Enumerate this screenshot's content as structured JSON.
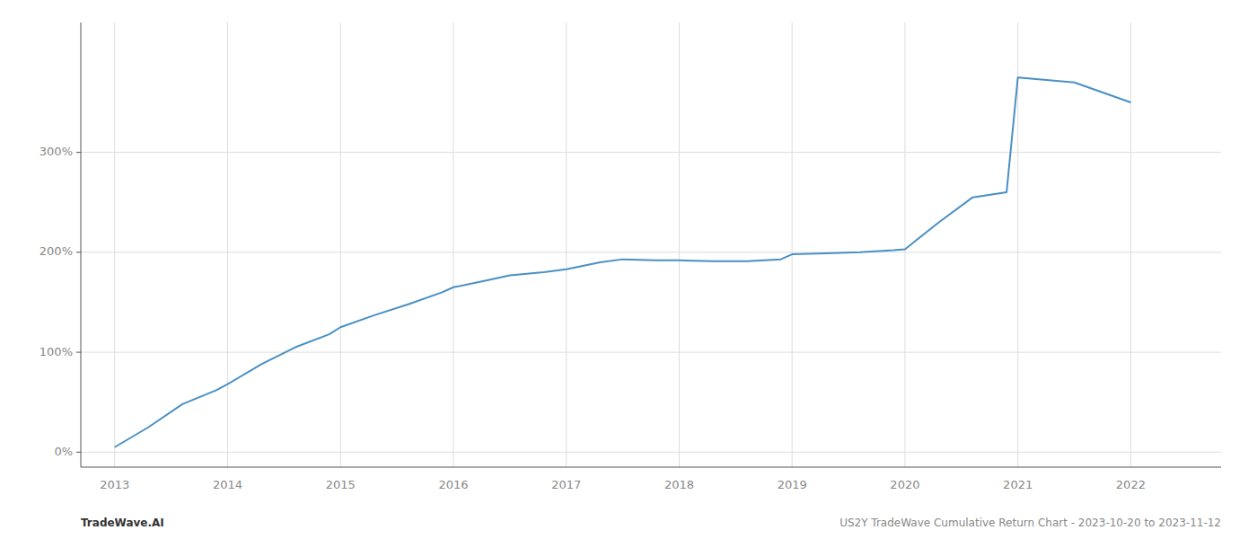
{
  "chart_data": {
    "type": "line",
    "x": [
      2013.0,
      2013.3,
      2013.6,
      2013.9,
      2014.0,
      2014.3,
      2014.6,
      2014.9,
      2015.0,
      2015.3,
      2015.6,
      2015.9,
      2016.0,
      2016.3,
      2016.5,
      2016.8,
      2017.0,
      2017.3,
      2017.5,
      2017.8,
      2018.0,
      2018.3,
      2018.6,
      2018.9,
      2019.0,
      2019.3,
      2019.6,
      2019.9,
      2020.0,
      2020.3,
      2020.6,
      2020.9,
      2021.0,
      2021.5,
      2022.0
    ],
    "values": [
      5,
      25,
      48,
      62,
      68,
      88,
      105,
      118,
      125,
      137,
      148,
      160,
      165,
      172,
      177,
      180,
      183,
      190,
      193,
      192,
      192,
      191,
      191,
      193,
      198,
      199,
      200,
      202,
      203,
      230,
      255,
      260,
      375,
      370,
      350
    ],
    "color": "#4a90c4",
    "xlim": [
      2012.7,
      2022.8
    ],
    "xticks": [
      2013,
      2014,
      2015,
      2016,
      2017,
      2018,
      2019,
      2020,
      2021,
      2022
    ],
    "ylim": [
      -15,
      430
    ],
    "yticks": [
      {
        "value": 0,
        "label": "0%"
      },
      {
        "value": 100,
        "label": "100%"
      },
      {
        "value": 200,
        "label": "200%"
      },
      {
        "value": 300,
        "label": "300%"
      }
    ],
    "grid": true,
    "annotations": [
      "TradeWave.AI",
      "US2Y TradeWave Cumulative Return Chart - 2023-10-20 to 2023-11-12"
    ]
  }
}
